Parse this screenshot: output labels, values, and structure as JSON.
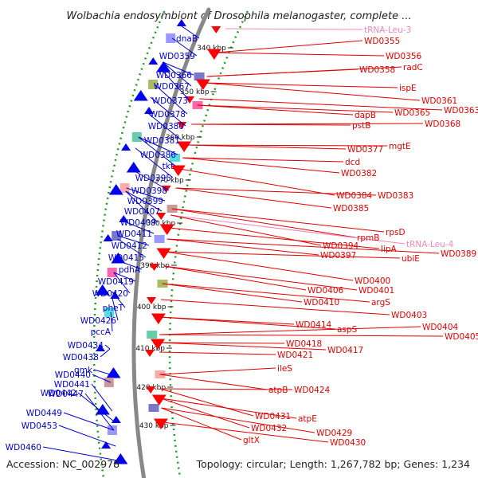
{
  "title": "Wolbachia endosymbiont of Drosophila melanogaster, complete ...",
  "footer": {
    "accession": "Accession: NC_002978",
    "summary": "Topology: circular; Length: 1,267,782 bp; Genes: 1,234"
  },
  "colors": {
    "forward_label": "#0000cc",
    "reverse_label": "#e00000",
    "trna_label": "#ee88bb",
    "backbone": "#888888",
    "ruler_dots": "#229922",
    "blue_arrow": "#0000ee",
    "red_arrow": "#ff0000"
  },
  "ruler_ticks": [
    "340 kbp",
    "350 kbp",
    "360 kbp",
    "370 kbp",
    "380 kbp",
    "390 kbp",
    "400 kbp",
    "410 kbp",
    "420 kbp",
    "430 kbp"
  ],
  "left_labels": [
    "dnaB",
    "WD0359",
    "WD0366",
    "WD0367",
    "WD0373",
    "WD0378",
    "WD0380",
    "WD0381",
    "WD0386",
    "tkt",
    "WD0395",
    "WD0398",
    "WD0399",
    "WD0407",
    "WD0409",
    "WD0411",
    "WD0412",
    "WD0415",
    "pdhA",
    "WD0419",
    "WD0420",
    "pheT",
    "WD0426",
    "pccA",
    "WD0434",
    "WD0438",
    "gmk",
    "WD0440",
    "WD0441",
    "WD0442",
    "WD0447",
    "WD0449",
    "WD0453",
    "WD0460"
  ],
  "right_labels": [
    {
      "text": "tRNA-Leu-3",
      "kind": "trna"
    },
    {
      "text": "WD0355",
      "kind": "gene"
    },
    {
      "text": "WD0356",
      "kind": "gene"
    },
    {
      "text": "radC",
      "kind": "gene"
    },
    {
      "text": "WD0358",
      "kind": "gene"
    },
    {
      "text": "ispE",
      "kind": "gene"
    },
    {
      "text": "WD0361",
      "kind": "gene"
    },
    {
      "text": "WD0363",
      "kind": "gene"
    },
    {
      "text": "dapB",
      "kind": "gene"
    },
    {
      "text": "WD0365",
      "kind": "gene"
    },
    {
      "text": "pstB",
      "kind": "gene"
    },
    {
      "text": "WD0368",
      "kind": "gene"
    },
    {
      "text": "mgtE",
      "kind": "gene"
    },
    {
      "text": "WD0377",
      "kind": "gene"
    },
    {
      "text": "dcd",
      "kind": "gene"
    },
    {
      "text": "WD0382",
      "kind": "gene"
    },
    {
      "text": "WD0384",
      "kind": "gene"
    },
    {
      "text": "WD0383",
      "kind": "gene"
    },
    {
      "text": "WD0385",
      "kind": "gene"
    },
    {
      "text": "rpsD",
      "kind": "gene"
    },
    {
      "text": "rpmB",
      "kind": "gene"
    },
    {
      "text": "tRNA-Leu-4",
      "kind": "trna"
    },
    {
      "text": "WD0394",
      "kind": "gene"
    },
    {
      "text": "lipA",
      "kind": "gene"
    },
    {
      "text": "WD0389",
      "kind": "gene"
    },
    {
      "text": "WD0397",
      "kind": "gene"
    },
    {
      "text": "ubiE",
      "kind": "gene"
    },
    {
      "text": "WD0400",
      "kind": "gene"
    },
    {
      "text": "WD0406",
      "kind": "gene"
    },
    {
      "text": "WD0401",
      "kind": "gene"
    },
    {
      "text": "WD0410",
      "kind": "gene"
    },
    {
      "text": "argS",
      "kind": "gene"
    },
    {
      "text": "WD0403",
      "kind": "gene"
    },
    {
      "text": "WD0414",
      "kind": "gene"
    },
    {
      "text": "aspS",
      "kind": "gene"
    },
    {
      "text": "WD0404",
      "kind": "gene"
    },
    {
      "text": "WD0405",
      "kind": "gene"
    },
    {
      "text": "WD0418",
      "kind": "gene"
    },
    {
      "text": "WD0417",
      "kind": "gene"
    },
    {
      "text": "WD0421",
      "kind": "gene"
    },
    {
      "text": "ileS",
      "kind": "gene"
    },
    {
      "text": "atpB",
      "kind": "gene"
    },
    {
      "text": "WD0424",
      "kind": "gene"
    },
    {
      "text": "WD0431",
      "kind": "gene"
    },
    {
      "text": "atpE",
      "kind": "gene"
    },
    {
      "text": "WD0432",
      "kind": "gene"
    },
    {
      "text": "WD0429",
      "kind": "gene"
    },
    {
      "text": "gltX",
      "kind": "gene"
    },
    {
      "text": "WD0430",
      "kind": "gene"
    }
  ]
}
